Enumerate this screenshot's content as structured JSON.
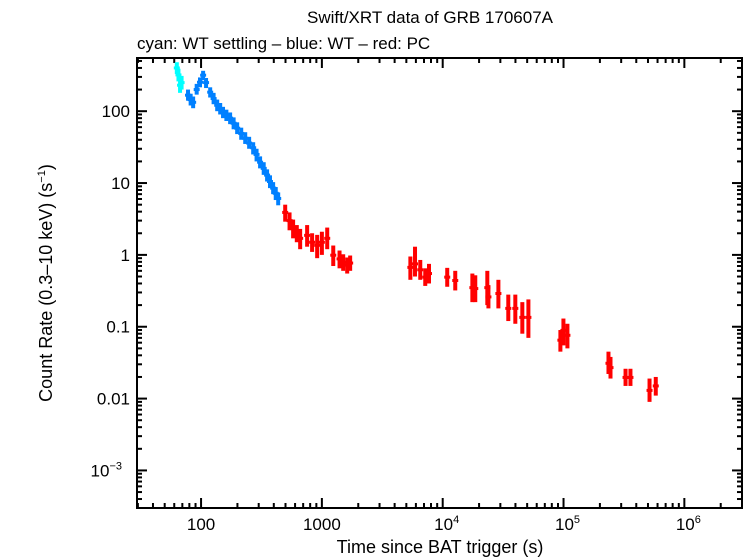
{
  "chart_data": {
    "type": "scatter",
    "title": "Swift/XRT data of GRB 170607A",
    "subtitle": "cyan: WT settling – blue: WT – red: PC",
    "xlabel": "Time since BAT trigger (s)",
    "ylabel": "Count Rate (0.3–10 keV) (s",
    "ylabel_sup": "−1",
    "ylabel_end": ")",
    "xscale": "log",
    "yscale": "log",
    "xlim": [
      29.5,
      3000000
    ],
    "ylim": [
      0.0003,
      550
    ],
    "grid": false,
    "x_ticks": [
      {
        "value": 100,
        "base": "100",
        "sup": ""
      },
      {
        "value": 1000,
        "base": "1000",
        "sup": ""
      },
      {
        "value": 10000,
        "base": "10",
        "sup": "4"
      },
      {
        "value": 100000,
        "base": "10",
        "sup": "5"
      },
      {
        "value": 1000000,
        "base": "10",
        "sup": "6"
      }
    ],
    "y_ticks": [
      {
        "value": 100,
        "base": "100",
        "sup": ""
      },
      {
        "value": 10,
        "base": "10",
        "sup": ""
      },
      {
        "value": 1,
        "base": "1",
        "sup": ""
      },
      {
        "value": 0.1,
        "base": "0.1",
        "sup": ""
      },
      {
        "value": 0.01,
        "base": "0.01",
        "sup": ""
      },
      {
        "value": 0.001,
        "base": "10",
        "sup": "−3"
      }
    ],
    "series": [
      {
        "mode": "WT settling",
        "color": "#00ffff",
        "points": [
          [
            63,
            400,
            330,
            480
          ],
          [
            65,
            320,
            260,
            390
          ],
          [
            67,
            230,
            180,
            290
          ],
          [
            69,
            250,
            200,
            310
          ]
        ]
      },
      {
        "mode": "WT",
        "color": "#0080ff",
        "points": [
          [
            78,
            167,
            140,
            200
          ],
          [
            82,
            145,
            120,
            175
          ],
          [
            86,
            133,
            110,
            160
          ],
          [
            92,
            200,
            170,
            240
          ],
          [
            98,
            253,
            215,
            295
          ],
          [
            104,
            317,
            270,
            365
          ],
          [
            110,
            250,
            210,
            290
          ],
          [
            119,
            184,
            155,
            215
          ],
          [
            127,
            150,
            125,
            180
          ],
          [
            136,
            121,
            100,
            145
          ],
          [
            144,
            108,
            90,
            130
          ],
          [
            152,
            97,
            80,
            115
          ],
          [
            162,
            88,
            73,
            105
          ],
          [
            174,
            80,
            66,
            96
          ],
          [
            186,
            68,
            56,
            82
          ],
          [
            199,
            58,
            48,
            70
          ],
          [
            215,
            49,
            40,
            59
          ],
          [
            232,
            42,
            35,
            51
          ],
          [
            250,
            36,
            30,
            44
          ],
          [
            270,
            31,
            25,
            37
          ],
          [
            288,
            25,
            20,
            30
          ],
          [
            308,
            19.5,
            16,
            23.5
          ],
          [
            330,
            16,
            13,
            19.5
          ],
          [
            352,
            12.9,
            10.5,
            15.5
          ],
          [
            372,
            10.5,
            8.5,
            12.8
          ],
          [
            395,
            8.5,
            7,
            10.3
          ],
          [
            415,
            7.2,
            5.8,
            8.8
          ],
          [
            435,
            6.1,
            4.9,
            7.4
          ]
        ]
      },
      {
        "mode": "PC",
        "color": "#ff0000",
        "points": [
          [
            497,
            3.9,
            2.9,
            5.0
          ],
          [
            540,
            3.0,
            2.2,
            3.9
          ],
          [
            578,
            2.35,
            1.7,
            3.1
          ],
          [
            620,
            2.0,
            1.5,
            2.6
          ],
          [
            661,
            1.7,
            1.2,
            2.3
          ],
          [
            755,
            1.87,
            1.3,
            2.6
          ],
          [
            830,
            1.5,
            1.1,
            2.0
          ],
          [
            914,
            1.36,
            0.9,
            1.9
          ],
          [
            1000,
            1.5,
            1.0,
            2.1
          ],
          [
            1107,
            1.7,
            1.2,
            2.4
          ],
          [
            1242,
            0.99,
            0.7,
            1.35
          ],
          [
            1400,
            0.88,
            0.65,
            1.15
          ],
          [
            1501,
            0.79,
            0.6,
            1.02
          ],
          [
            1620,
            0.72,
            0.55,
            0.92
          ],
          [
            1714,
            0.77,
            0.6,
            0.98
          ],
          [
            5400,
            0.67,
            0.45,
            0.95
          ],
          [
            5900,
            0.75,
            0.5,
            1.3
          ],
          [
            6520,
            0.62,
            0.45,
            0.85
          ],
          [
            7170,
            0.49,
            0.37,
            0.65
          ],
          [
            7700,
            0.55,
            0.4,
            0.75
          ],
          [
            10900,
            0.49,
            0.36,
            0.66
          ],
          [
            12700,
            0.44,
            0.32,
            0.6
          ],
          [
            17600,
            0.35,
            0.22,
            0.55
          ],
          [
            18600,
            0.34,
            0.22,
            0.52
          ],
          [
            23400,
            0.35,
            0.2,
            0.6
          ],
          [
            23900,
            0.26,
            0.18,
            0.38
          ],
          [
            28900,
            0.29,
            0.18,
            0.45
          ],
          [
            34900,
            0.18,
            0.12,
            0.28
          ],
          [
            39900,
            0.18,
            0.11,
            0.28
          ],
          [
            45600,
            0.135,
            0.08,
            0.22
          ],
          [
            51200,
            0.135,
            0.07,
            0.24
          ],
          [
            94200,
            0.065,
            0.045,
            0.09
          ],
          [
            99800,
            0.089,
            0.055,
            0.13
          ],
          [
            107700,
            0.076,
            0.05,
            0.11
          ],
          [
            235500,
            0.031,
            0.022,
            0.045
          ],
          [
            244800,
            0.027,
            0.019,
            0.038
          ],
          [
            326000,
            0.0197,
            0.015,
            0.026
          ],
          [
            358000,
            0.0197,
            0.015,
            0.026
          ],
          [
            515000,
            0.013,
            0.009,
            0.019
          ],
          [
            580000,
            0.015,
            0.011,
            0.02
          ]
        ]
      }
    ]
  }
}
